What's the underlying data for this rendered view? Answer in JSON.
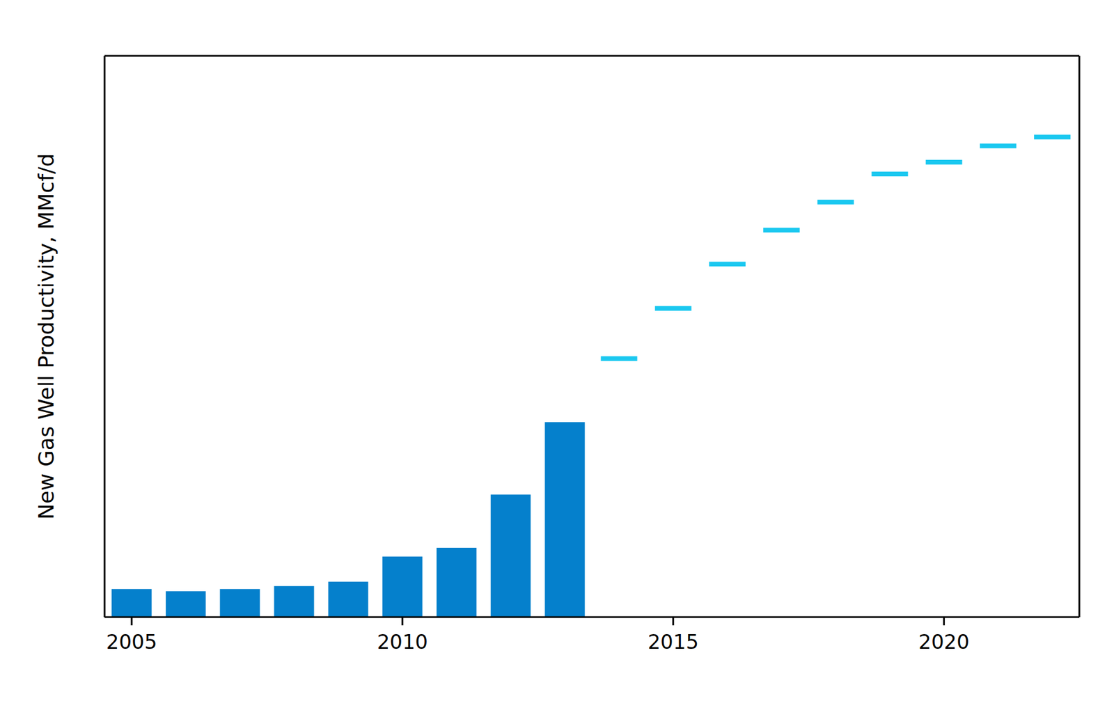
{
  "chart_data": {
    "type": "bar",
    "y_label": "New Gas Well Productivity,  MMcf/d",
    "x": [
      2005,
      2006,
      2007,
      2008,
      2009,
      2010,
      2011,
      2012,
      2013,
      2014,
      2015,
      2016,
      2017,
      2018,
      2019,
      2020,
      2021,
      2022
    ],
    "series": [
      {
        "type": "bar",
        "color": "#0580cc",
        "values": [
          0.19,
          0.175,
          0.19,
          0.21,
          0.24,
          0.41,
          0.47,
          0.83,
          1.32,
          null,
          null,
          null,
          null,
          null,
          null,
          null,
          null,
          null
        ]
      },
      {
        "type": "scatter",
        "marker": "dash",
        "color": "#1ac8f0",
        "values": [
          null,
          null,
          null,
          null,
          null,
          null,
          null,
          null,
          null,
          1.75,
          2.09,
          2.39,
          2.62,
          2.81,
          3.0,
          3.08,
          3.19,
          3.25
        ]
      }
    ],
    "xlim": [
      2004.5,
      2022.5
    ],
    "xticks": [
      2005,
      2010,
      2015,
      2020
    ],
    "ylim": [
      0,
      3.8
    ],
    "yticks": [
      0,
      1,
      2,
      3
    ],
    "tick_labels": "x",
    "grid": false
  }
}
